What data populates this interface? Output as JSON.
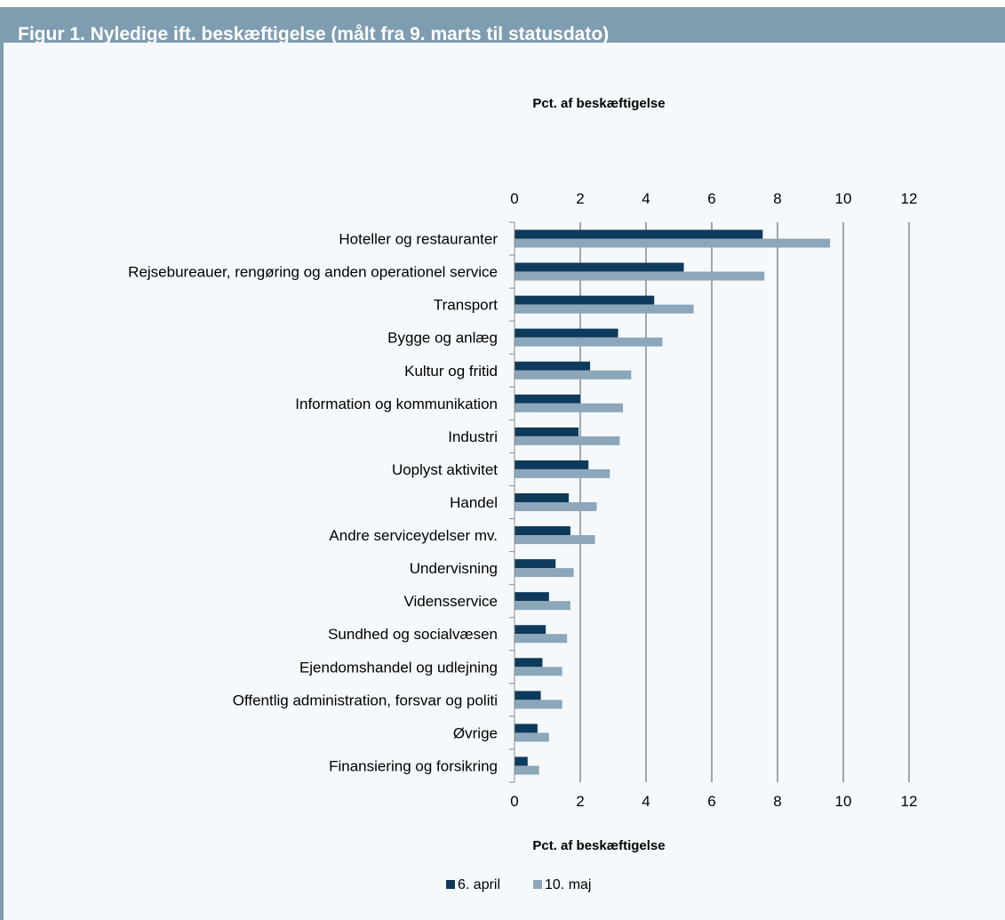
{
  "figure": {
    "title": "Figur 1. Nyledige ift. beskæftigelse (målt fra 9. marts til statusdato)"
  },
  "colors": {
    "frame_bar": "#7f9db1",
    "background": "#f5f9fc",
    "series_1": "#0e3a5c",
    "series_2": "#8ca7ba",
    "grid": "#8a8a8a"
  },
  "chart_data": {
    "type": "bar",
    "orientation": "horizontal",
    "title": "",
    "xlabel_top": "Pct. af beskæftigelse",
    "xlabel_bottom": "Pct. af beskæftigelse",
    "xlim": [
      0,
      12
    ],
    "xticks": [
      0,
      2,
      4,
      6,
      8,
      10,
      12
    ],
    "grid": "vertical",
    "legend_position": "bottom",
    "categories": [
      "Hoteller og restauranter",
      "Rejsebureauer, rengøring og anden operationel service",
      "Transport",
      "Bygge og anlæg",
      "Kultur og fritid",
      "Information og kommunikation",
      "Industri",
      "Uoplyst aktivitet",
      "Handel",
      "Andre serviceydelser mv.",
      "Undervisning",
      "Vidensservice",
      "Sundhed og socialvæsen",
      "Ejendomshandel og udlejning",
      "Offentlig administration, forsvar og politi",
      "Øvrige",
      "Finansiering og forsikring"
    ],
    "series": [
      {
        "name": "6. april",
        "color": "#0e3a5c",
        "values": [
          7.55,
          5.15,
          4.25,
          3.15,
          2.3,
          2.0,
          1.95,
          2.25,
          1.65,
          1.7,
          1.25,
          1.05,
          0.95,
          0.85,
          0.8,
          0.7,
          0.4
        ]
      },
      {
        "name": "10. maj",
        "color": "#8ca7ba",
        "values": [
          9.6,
          7.6,
          5.45,
          4.5,
          3.55,
          3.3,
          3.2,
          2.9,
          2.5,
          2.45,
          1.8,
          1.7,
          1.6,
          1.45,
          1.45,
          1.05,
          0.75
        ]
      }
    ]
  }
}
